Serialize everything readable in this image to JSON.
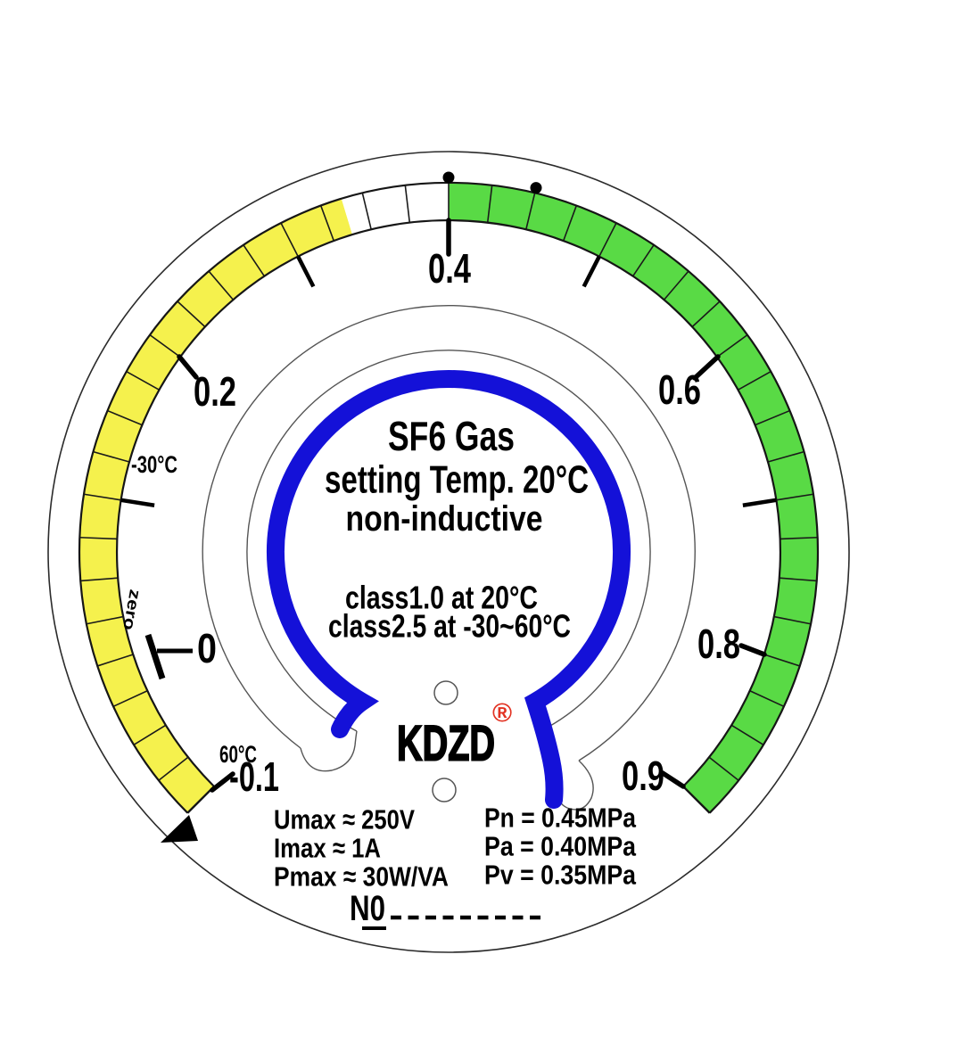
{
  "gauge": {
    "center_text": {
      "line1": "SF6 Gas",
      "line2": "setting Temp. 20°C",
      "line3": "non-inductive",
      "class1": "class1.0 at 20°C",
      "class2": "class2.5 at -30~60°C"
    },
    "brand": {
      "name": "KDZD",
      "registered": "®",
      "registered_color": "#e23222"
    },
    "temp_labels": {
      "minus30": "-30°C",
      "zero": "zero",
      "plus60": "60°C"
    },
    "specs_left": [
      "Umax ≈ 250V",
      "Imax ≈ 1A",
      "Pmax ≈ 30W/VA"
    ],
    "specs_right": [
      "Pn = 0.45MPa",
      "Pa = 0.40MPa",
      "Pv = 0.35MPa"
    ],
    "serial_prefix": "N0"
  },
  "chart_data": {
    "type": "gauge",
    "unit": "MPa",
    "min": -0.1,
    "max": 0.9,
    "angle_span_deg": 270,
    "top_value": 0.4,
    "segment_step": 0.025,
    "major_tick_labels": [
      {
        "value": -0.1,
        "label": "-0.1"
      },
      {
        "value": 0,
        "label": "0"
      },
      {
        "value": 0.2,
        "label": "0.2"
      },
      {
        "value": 0.4,
        "label": "0.4"
      },
      {
        "value": 0.6,
        "label": "0.6"
      },
      {
        "value": 0.8,
        "label": "0.8"
      },
      {
        "value": 0.9,
        "label": "0.9"
      }
    ],
    "minor_ticks": [
      0.1,
      0.3,
      0.5,
      0.7
    ],
    "zones": [
      {
        "from": -0.1,
        "to": 0.3375,
        "color": "#f5f14d"
      },
      {
        "from": 0.3375,
        "to": 0.4,
        "color": "#ffffff"
      },
      {
        "from": 0.4,
        "to": 0.9,
        "color": "#59da45"
      }
    ],
    "setpoint_dots": [
      0.4,
      0.45
    ],
    "setpoints": {
      "Pn": "0.45",
      "Pa": "0.40",
      "Pv": "0.35"
    },
    "blue_arc_color": "#1411d8",
    "band_outline_color": "#161616"
  }
}
